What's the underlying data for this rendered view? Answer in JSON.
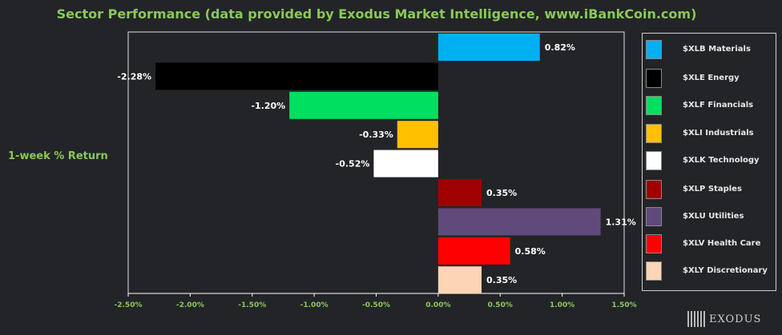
{
  "header": {
    "title": "Sector Performance (data provided by Exodus Market Intelligence, www.iBankCoin.com)"
  },
  "brand": {
    "logo_text": "EXODUS"
  },
  "chart_data": {
    "type": "bar",
    "orientation": "horizontal",
    "title": "Sector Performance (data provided by Exodus Market Intelligence, www.iBankCoin.com)",
    "ylabel": "1-week % Return",
    "xlim": [
      -2.5,
      1.5
    ],
    "x_ticks": [
      "-2.50%",
      "-2.00%",
      "-1.50%",
      "-1.00%",
      "-0.50%",
      "0.00%",
      "0.50%",
      "1.00%",
      "1.50%"
    ],
    "grid": false,
    "legend_position": "right",
    "series": [
      {
        "name": "$XLB Materials",
        "value": 0.82,
        "label": "0.82%",
        "color": "#00b0f0"
      },
      {
        "name": "$XLE Energy",
        "value": -2.28,
        "label": "-2.28%",
        "color": "#000000"
      },
      {
        "name": "$XLF Financials",
        "value": -1.2,
        "label": "-1.20%",
        "color": "#00e060"
      },
      {
        "name": "$XLI Industrials",
        "value": -0.33,
        "label": "-0.33%",
        "color": "#ffc000"
      },
      {
        "name": "$XLK Technology",
        "value": -0.52,
        "label": "-0.52%",
        "color": "#ffffff"
      },
      {
        "name": "$XLP Staples",
        "value": 0.35,
        "label": "0.35%",
        "color": "#a00000"
      },
      {
        "name": "$XLU Utilities",
        "value": 1.31,
        "label": "1.31%",
        "color": "#604a7b"
      },
      {
        "name": "$XLV Health Care",
        "value": 0.58,
        "label": "0.58%",
        "color": "#ff0000"
      },
      {
        "name": "$XLY Discretionary",
        "value": 0.35,
        "label": "0.35%",
        "color": "#fcd5b5"
      }
    ]
  }
}
